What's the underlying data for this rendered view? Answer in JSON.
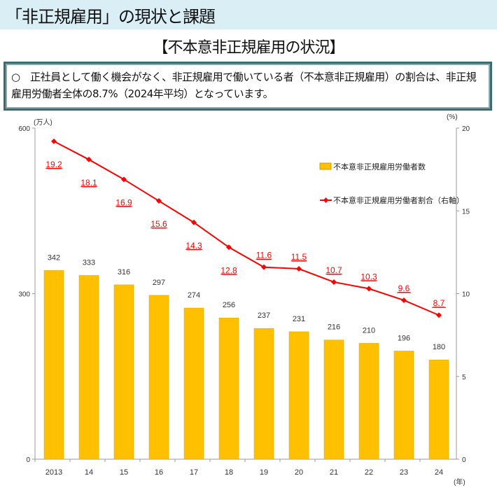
{
  "header": {
    "title": "「非正規雇用」の現状と課題"
  },
  "subtitle": "【不本意非正規雇用の状況】",
  "note": "○　正社員として働く機会がなく、非正規雇用で働いている者（不本意非正規雇用）の割合は、非正規雇用労働者全体の8.7%（2024年平均）となっています。",
  "chart_data": {
    "type": "bar+line",
    "categories": [
      "2013",
      "14",
      "15",
      "16",
      "17",
      "18",
      "19",
      "20",
      "21",
      "22",
      "23",
      "24"
    ],
    "xlabel": "(年)",
    "ylabel_left": "(万人)",
    "ylabel_right": "(%)",
    "ylim_left": [
      0,
      600
    ],
    "yticks_left": [
      0,
      300,
      600
    ],
    "ylim_right": [
      0,
      20
    ],
    "yticks_right": [
      0,
      5,
      10,
      15,
      20
    ],
    "series": [
      {
        "name": "不本意非正規雇用労働者数",
        "type": "bar",
        "axis": "left",
        "color": "#ffc000",
        "values": [
          342,
          333,
          316,
          297,
          274,
          256,
          237,
          231,
          216,
          210,
          196,
          180
        ]
      },
      {
        "name": "不本意非正規雇用労働者割合（右軸）",
        "type": "line",
        "axis": "right",
        "color": "#ff0000",
        "values": [
          19.2,
          18.1,
          16.9,
          15.6,
          14.3,
          12.8,
          11.6,
          11.5,
          10.7,
          10.3,
          9.6,
          8.7
        ]
      }
    ],
    "legend": "top-right",
    "grid": false
  }
}
